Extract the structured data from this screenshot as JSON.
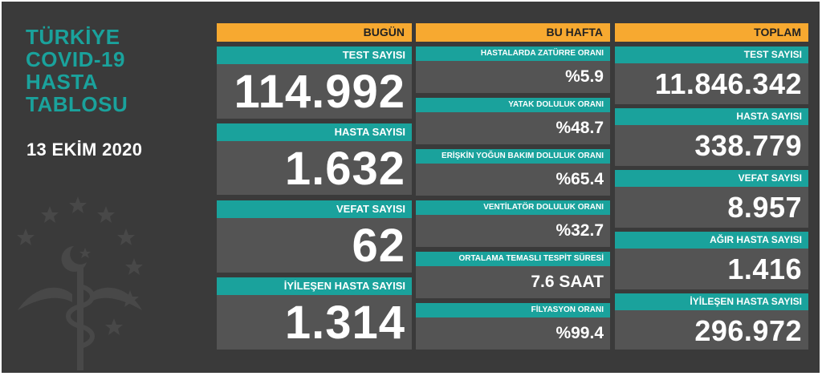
{
  "header": {
    "title_lines": [
      "TÜRKİYE",
      "COVID-19",
      "HASTA",
      "TABLOSU"
    ],
    "date": "13 EKİM 2020"
  },
  "columns": {
    "today": {
      "heading": "BUGÜN",
      "cards": [
        {
          "label": "TEST SAYISI",
          "value": "114.992"
        },
        {
          "label": "HASTA SAYISI",
          "value": "1.632"
        },
        {
          "label": "VEFAT SAYISI",
          "value": "62"
        },
        {
          "label": "İYİLEŞEN HASTA SAYISI",
          "value": "1.314"
        }
      ]
    },
    "week": {
      "heading": "BU HAFTA",
      "cards": [
        {
          "label": "HASTALARDA ZATÜRRE ORANI",
          "value": "%5.9"
        },
        {
          "label": "YATAK DOLULUK ORANI",
          "value": "%48.7"
        },
        {
          "label": "ERİŞKİN YOĞUN BAKIM DOLULUK ORANI",
          "value": "%65.4"
        },
        {
          "label": "VENTİLATÖR DOLULUK ORANI",
          "value": "%32.7"
        },
        {
          "label": "ORTALAMA TEMASLI TESPİT SÜRESİ",
          "value": "7.6 SAAT"
        },
        {
          "label": "FİLYASYON ORANI",
          "value": "%99.4"
        }
      ]
    },
    "total": {
      "heading": "TOPLAM",
      "cards": [
        {
          "label": "TEST SAYISI",
          "value": "11.846.342"
        },
        {
          "label": "HASTA SAYISI",
          "value": "338.779"
        },
        {
          "label": "VEFAT SAYISI",
          "value": "8.957"
        },
        {
          "label": "AĞIR HASTA SAYISI",
          "value": "1.416"
        },
        {
          "label": "İYİLEŞEN HASTA SAYISI",
          "value": "296.972"
        }
      ]
    }
  },
  "icons": {
    "emblem": "ministry-of-health-emblem-icon"
  },
  "colors": {
    "background": "#3a3a3a",
    "card": "#545454",
    "teal": "#1aa29c",
    "orange": "#f7a930",
    "text": "#ffffff"
  }
}
